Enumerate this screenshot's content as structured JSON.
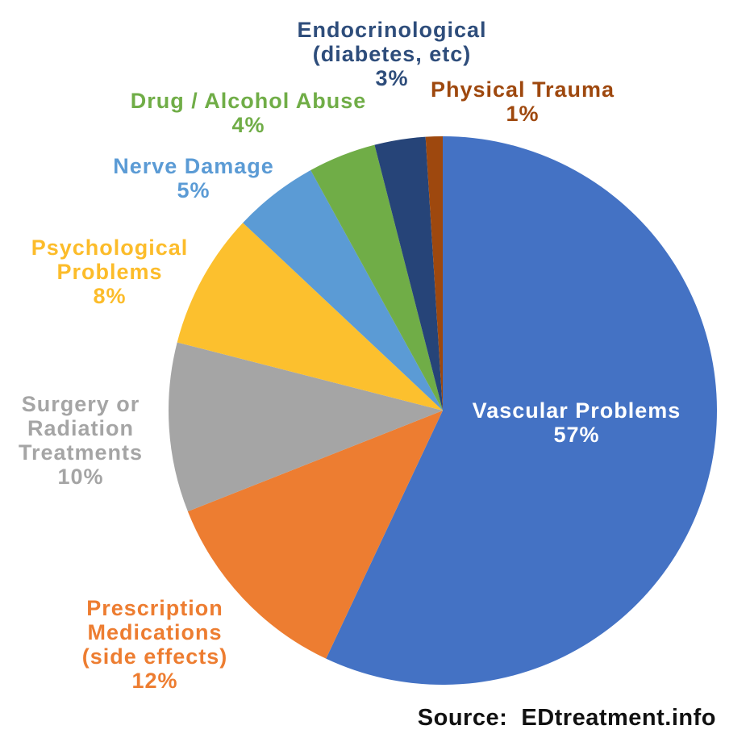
{
  "chart_data": {
    "type": "pie",
    "title": "",
    "start_angle_deg": 0,
    "direction": "clockwise",
    "legend_position": "labels-around-pie",
    "slices": [
      {
        "id": "vascular-problems",
        "label": "Vascular Problems",
        "value": 57,
        "pct_text": "57%",
        "color": "#4472C4"
      },
      {
        "id": "prescription-medications",
        "label": "Prescription Medications (side effects)",
        "value": 12,
        "pct_text": "12%",
        "color": "#ED7D31"
      },
      {
        "id": "surgery-radiation",
        "label": "Surgery or Radiation Treatments",
        "value": 10,
        "pct_text": "10%",
        "color": "#A5A5A5"
      },
      {
        "id": "psychological-problems",
        "label": "Psychological Problems",
        "value": 8,
        "pct_text": "8%",
        "color": "#FCC02E"
      },
      {
        "id": "nerve-damage",
        "label": "Nerve Damage",
        "value": 5,
        "pct_text": "5%",
        "color": "#5B9BD5"
      },
      {
        "id": "drug-alcohol-abuse",
        "label": "Drug / Alcohol Abuse",
        "value": 4,
        "pct_text": "4%",
        "color": "#70AD47"
      },
      {
        "id": "endocrinological",
        "label": "Endocrinological (diabetes, etc)",
        "value": 3,
        "pct_text": "3%",
        "color": "#264478"
      },
      {
        "id": "physical-trauma",
        "label": "Physical Trauma",
        "value": 1,
        "pct_text": "1%",
        "color": "#9E480E"
      }
    ]
  },
  "labels": {
    "vascular": {
      "color": "#FFFFFF",
      "lines": [
        "Vascular Problems",
        "57%"
      ]
    },
    "prescription": {
      "color": "#ED7D31",
      "lines": [
        "Prescription",
        "Medications",
        "(side effects)",
        "12%"
      ]
    },
    "surgery": {
      "color": "#A5A5A5",
      "lines": [
        "Surgery or",
        "Radiation",
        "Treatments",
        "10%"
      ]
    },
    "psychological": {
      "color": "#FCBC2A",
      "lines": [
        "Psychological",
        "Problems",
        "8%"
      ]
    },
    "nerve": {
      "color": "#5B9BD5",
      "lines": [
        "Nerve Damage",
        "5%"
      ]
    },
    "drug": {
      "color": "#70AD47",
      "lines": [
        "Drug / Alcohol Abuse",
        "4%"
      ]
    },
    "endocrinological": {
      "color": "#2E4D7B",
      "lines": [
        "Endocrinological",
        "(diabetes, etc)",
        "3%"
      ]
    },
    "physical": {
      "color": "#9E480E",
      "lines": [
        "Physical Trauma",
        "1%"
      ]
    }
  },
  "source": {
    "label": "Source:  EDtreatment.info"
  }
}
